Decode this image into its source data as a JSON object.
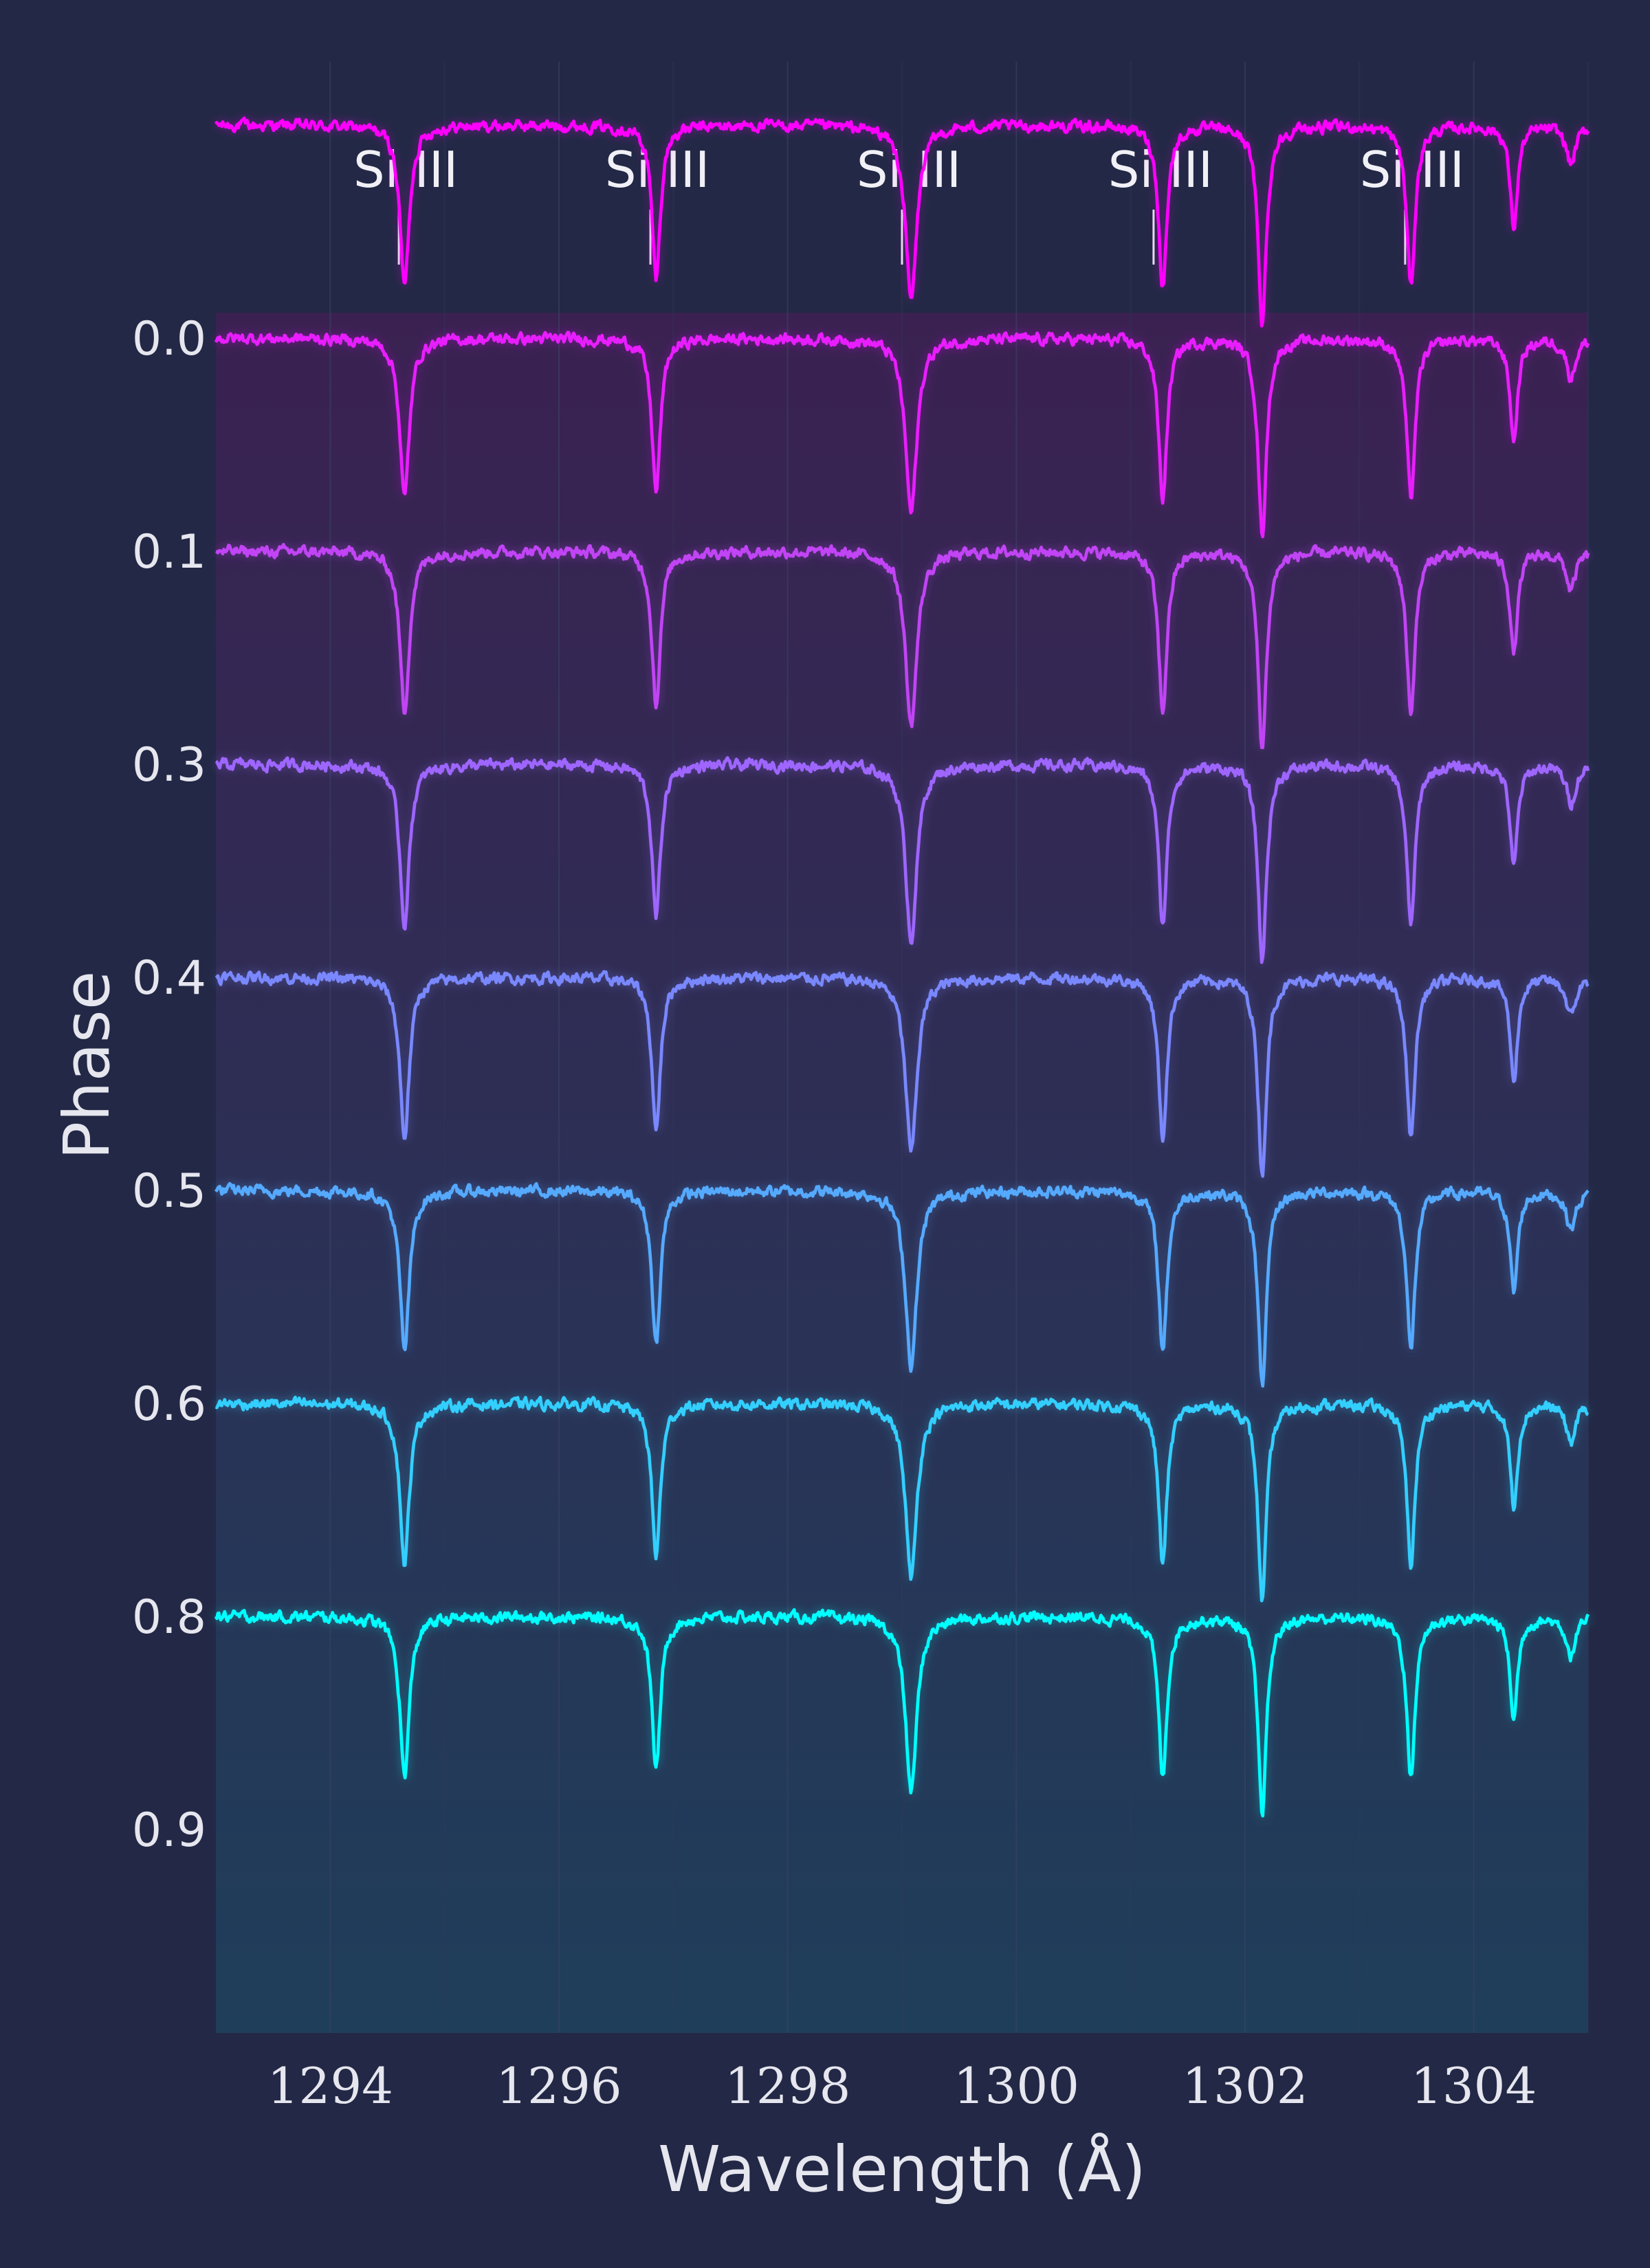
{
  "chart_data": {
    "type": "line",
    "title": "",
    "xlabel": "Wavelength (Å)",
    "ylabel": "Phase",
    "xlim": [
      1293.0,
      1305.0
    ],
    "xticks": [
      "1294",
      "1296",
      "1298",
      "1300",
      "1302",
      "1304"
    ],
    "xtick_values": [
      1294,
      1296,
      1298,
      1300,
      1302,
      1304
    ],
    "grid": true,
    "offset_unit": "normalized flux",
    "continuum_offsets": [
      0.0,
      -1.0,
      -2.0,
      -3.0,
      -4.0,
      -5.0,
      -6.0,
      -7.0
    ],
    "line_ids": [
      {
        "label": "Si III",
        "wavelength": 1294.6
      },
      {
        "label": "Si III",
        "wavelength": 1296.8
      },
      {
        "label": "Si III",
        "wavelength": 1299.0
      },
      {
        "label": "Si III",
        "wavelength": 1301.2
      },
      {
        "label": "Si III",
        "wavelength": 1303.4
      }
    ],
    "absorption_lines": [
      {
        "center": 1294.65,
        "depth": 0.75,
        "width": 0.05
      },
      {
        "center": 1296.85,
        "depth": 0.72,
        "width": 0.045
      },
      {
        "center": 1299.08,
        "depth": 0.82,
        "width": 0.06
      },
      {
        "center": 1301.28,
        "depth": 0.75,
        "width": 0.045
      },
      {
        "center": 1302.15,
        "depth": 0.92,
        "width": 0.045
      },
      {
        "center": 1303.45,
        "depth": 0.75,
        "width": 0.045
      },
      {
        "center": 1304.35,
        "depth": 0.48,
        "width": 0.04
      },
      {
        "center": 1304.85,
        "depth": 0.18,
        "width": 0.05
      }
    ],
    "series": [
      {
        "name": "0.0",
        "color": "#ff00ff"
      },
      {
        "name": "0.1",
        "color": "#e81eff"
      },
      {
        "name": "0.3",
        "color": "#c144f5"
      },
      {
        "name": "0.4",
        "color": "#9e66ff"
      },
      {
        "name": "0.5",
        "color": "#7a88ff"
      },
      {
        "name": "0.6",
        "color": "#55aaff"
      },
      {
        "name": "0.8",
        "color": "#33cfff"
      },
      {
        "name": "0.9",
        "color": "#00ffff"
      }
    ],
    "band_gradient": [
      "#3a2151",
      "#1f3e5a"
    ],
    "background": "#222845"
  }
}
